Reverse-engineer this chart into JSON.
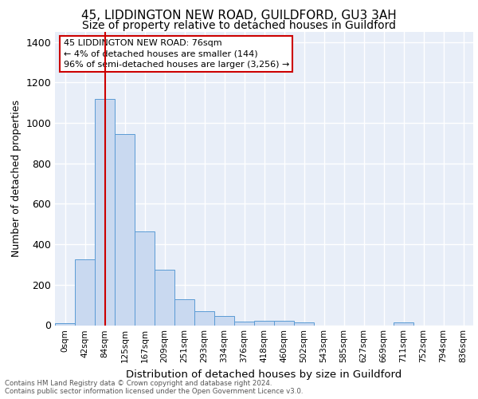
{
  "title1": "45, LIDDINGTON NEW ROAD, GUILDFORD, GU3 3AH",
  "title2": "Size of property relative to detached houses in Guildford",
  "xlabel": "Distribution of detached houses by size in Guildford",
  "ylabel": "Number of detached properties",
  "footnote1": "Contains HM Land Registry data © Crown copyright and database right 2024.",
  "footnote2": "Contains public sector information licensed under the Open Government Licence v3.0.",
  "annotation_line1": "45 LIDDINGTON NEW ROAD: 76sqm",
  "annotation_line2": "← 4% of detached houses are smaller (144)",
  "annotation_line3": "96% of semi-detached houses are larger (3,256) →",
  "bin_labels": [
    "0sqm",
    "42sqm",
    "84sqm",
    "125sqm",
    "167sqm",
    "209sqm",
    "251sqm",
    "293sqm",
    "334sqm",
    "376sqm",
    "418sqm",
    "460sqm",
    "502sqm",
    "543sqm",
    "585sqm",
    "627sqm",
    "669sqm",
    "711sqm",
    "752sqm",
    "794sqm",
    "836sqm"
  ],
  "bar_heights": [
    10,
    325,
    1120,
    945,
    465,
    275,
    130,
    68,
    45,
    18,
    22,
    22,
    15,
    0,
    0,
    0,
    0,
    13,
    0,
    0,
    0
  ],
  "bar_color": "#c9d9f0",
  "bar_edge_color": "#5b9bd5",
  "red_line_x": 2,
  "ylim": [
    0,
    1450
  ],
  "yticks": [
    0,
    200,
    400,
    600,
    800,
    1000,
    1200,
    1400
  ],
  "bg_color": "#e8eef8",
  "grid_color": "#ffffff",
  "title1_fontsize": 11,
  "title2_fontsize": 10,
  "annot_box_color": "#ffffff",
  "annot_border_color": "#cc0000",
  "red_line_color": "#cc0000"
}
